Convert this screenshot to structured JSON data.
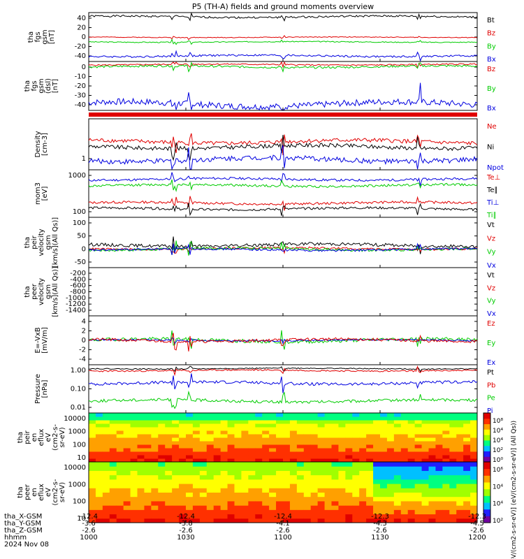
{
  "title": "P5 (TH-A) fields and ground moments overview",
  "colors": {
    "black": "#000000",
    "red": "#e00000",
    "green": "#00cc00",
    "blue": "#0000e0",
    "cbar": [
      "#7000a0",
      "#2020ff",
      "#00c0ff",
      "#00ff80",
      "#a0ff00",
      "#ffff00",
      "#ffa000",
      "#ff3000",
      "#e00000"
    ]
  },
  "panels": [
    {
      "id": "fgs-gsm",
      "ylabel": [
        "tha",
        "fgs",
        "gsm",
        "[nT]"
      ],
      "ticks": [
        "40",
        "20",
        "0",
        "-20",
        "-40"
      ],
      "ylim": [
        -50,
        55
      ],
      "legend": [
        {
          "text": "Bt",
          "color": "#000000"
        },
        {
          "text": "Bz",
          "color": "#e00000"
        },
        {
          "text": "By",
          "color": "#00cc00"
        },
        {
          "text": "Bx",
          "color": "#0000e0"
        }
      ],
      "series": [
        {
          "name": "Bt",
          "color": "#000000",
          "base": 46,
          "amp": 4,
          "seed": 1
        },
        {
          "name": "Bz",
          "color": "#e00000",
          "base": 2,
          "amp": 1.5,
          "seed": 2
        },
        {
          "name": "By",
          "color": "#00cc00",
          "base": -8,
          "amp": 2,
          "seed": 3
        },
        {
          "name": "Bx",
          "color": "#0000e0",
          "base": -38,
          "amp": 4,
          "seed": 4
        }
      ]
    },
    {
      "id": "fgs-gsm-dsl",
      "ylabel": [
        "tha",
        "fgs",
        "gsm",
        "(dsl)",
        "[nT]"
      ],
      "ticks": [
        "0",
        "-10",
        "-20",
        "-30",
        "-40"
      ],
      "ylim": [
        -45,
        2
      ],
      "legend": [
        {
          "text": "Bz",
          "color": "#e00000"
        },
        {
          "text": "By",
          "color": "#00cc00"
        },
        {
          "text": "Bx",
          "color": "#0000e0"
        }
      ],
      "series": [
        {
          "name": "Bz",
          "color": "#e00000",
          "base": -1,
          "amp": 1.2,
          "seed": 5
        },
        {
          "name": "By",
          "color": "#00cc00",
          "base": -3,
          "amp": 2,
          "seed": 6
        },
        {
          "name": "Bx",
          "color": "#0000e0",
          "base": -39,
          "amp": 6,
          "seed": 7
        }
      ]
    },
    {
      "id": "density",
      "ylabel": [
        "Density",
        "[cm-3]"
      ],
      "ticks": [
        "1"
      ],
      "ylim": [
        0,
        1
      ],
      "legend": [
        {
          "text": "Ne",
          "color": "#e00000"
        },
        {
          "text": "Ni",
          "color": "#000000"
        },
        {
          "text": "Npot",
          "color": "#0000e0"
        }
      ],
      "series": [
        {
          "name": "Ne",
          "color": "#e00000",
          "base": 0.55,
          "amp": 0.08,
          "seed": 8
        },
        {
          "name": "Ni",
          "color": "#000000",
          "base": 0.45,
          "amp": 0.08,
          "seed": 9
        },
        {
          "name": "Npot",
          "color": "#0000e0",
          "base": 0.2,
          "amp": 0.1,
          "seed": 10
        }
      ]
    },
    {
      "id": "temperature",
      "ylabel": [
        "mom3",
        "[eV]"
      ],
      "ticks": [
        "1000",
        "100"
      ],
      "ylim": [
        0,
        1
      ],
      "legend": [
        {
          "text": "Te⊥",
          "color": "#e00000"
        },
        {
          "text": "Te∥",
          "color": "#000000"
        },
        {
          "text": "Ti⊥",
          "color": "#0000e0"
        },
        {
          "text": "Ti∥",
          "color": "#00cc00"
        }
      ],
      "series": [
        {
          "name": "Ti⊥",
          "color": "#0000e0",
          "base": 0.8,
          "amp": 0.05,
          "seed": 11
        },
        {
          "name": "Ti∥",
          "color": "#00cc00",
          "base": 0.67,
          "amp": 0.05,
          "seed": 12
        },
        {
          "name": "Te⊥",
          "color": "#e00000",
          "base": 0.3,
          "amp": 0.05,
          "seed": 13
        },
        {
          "name": "Te∥",
          "color": "#000000",
          "base": 0.18,
          "amp": 0.05,
          "seed": 14
        }
      ]
    },
    {
      "id": "velocity-peir",
      "ylabel": [
        "tha",
        "peir",
        "velocity",
        "gsm",
        "[km/s](All Qs)]"
      ],
      "ticks": [
        "100",
        "50",
        "0",
        "-50"
      ],
      "ylim": [
        -70,
        120
      ],
      "legend": [
        {
          "text": "Vt",
          "color": "#000000"
        },
        {
          "text": "Vz",
          "color": "#e00000"
        },
        {
          "text": "Vy",
          "color": "#00cc00"
        },
        {
          "text": "Vx",
          "color": "#0000e0"
        }
      ],
      "series": [
        {
          "name": "Vt",
          "color": "#000000",
          "base": 15,
          "amp": 12,
          "seed": 15
        },
        {
          "name": "Vz",
          "color": "#e00000",
          "base": 2,
          "amp": 8,
          "seed": 16
        },
        {
          "name": "Vy",
          "color": "#00cc00",
          "base": 0,
          "amp": 10,
          "seed": 17
        },
        {
          "name": "Vx",
          "color": "#0000e0",
          "base": -2,
          "amp": 8,
          "seed": 18
        }
      ]
    },
    {
      "id": "velocity-peer",
      "ylabel": [
        "tha",
        "peer",
        "velocity",
        "gsm",
        "[km/s](All Qs)]"
      ],
      "ticks": [
        "-200",
        "-400",
        "-600",
        "-800",
        "-1000",
        "-1200",
        "-1400"
      ],
      "ylim": [
        -1500,
        0
      ],
      "legend": [
        {
          "text": "Vt",
          "color": "#000000"
        },
        {
          "text": "Vz",
          "color": "#e00000"
        },
        {
          "text": "Vy",
          "color": "#00cc00"
        },
        {
          "text": "Vx",
          "color": "#0000e0"
        }
      ],
      "series": []
    },
    {
      "id": "efield",
      "ylabel": [
        "E=-VxB",
        "[mV/m]"
      ],
      "ticks": [
        "4",
        "2",
        "0",
        "-2",
        "-4"
      ],
      "ylim": [
        -4.2,
        4.2
      ],
      "legend": [
        {
          "text": "Ez",
          "color": "#e00000"
        },
        {
          "text": "Ey",
          "color": "#00cc00"
        },
        {
          "text": "Ex",
          "color": "#0000e0"
        }
      ],
      "series": [
        {
          "name": "Ey",
          "color": "#00cc00",
          "base": 0,
          "amp": 0.6,
          "seed": 19
        },
        {
          "name": "Ex",
          "color": "#0000e0",
          "base": 0,
          "amp": 0.25,
          "seed": 20
        },
        {
          "name": "Ez",
          "color": "#e00000",
          "base": 0,
          "amp": 0.5,
          "seed": 21
        }
      ]
    },
    {
      "id": "pressure",
      "ylabel": [
        "Pressure",
        "[nPa]"
      ],
      "ticks": [
        "1.00",
        "0.10",
        "0.01"
      ],
      "ylim": [
        0,
        1
      ],
      "legend": [
        {
          "text": "Pt",
          "color": "#000000"
        },
        {
          "text": "Pb",
          "color": "#e00000"
        },
        {
          "text": "Pe",
          "color": "#00cc00"
        },
        {
          "text": "Pi",
          "color": "#0000e0"
        }
      ],
      "series": [
        {
          "name": "Pt",
          "color": "#000000",
          "base": 0.92,
          "amp": 0.02,
          "seed": 22
        },
        {
          "name": "Pb",
          "color": "#e00000",
          "base": 0.88,
          "amp": 0.03,
          "seed": 23
        },
        {
          "name": "Pi",
          "color": "#0000e0",
          "base": 0.62,
          "amp": 0.06,
          "seed": 24
        },
        {
          "name": "Pe",
          "color": "#00cc00",
          "base": 0.25,
          "amp": 0.06,
          "seed": 25
        }
      ]
    }
  ],
  "spectrograms": [
    {
      "id": "peir-eflux",
      "ylabel": [
        "tha",
        "peir",
        "en",
        "eflux",
        "eV",
        "(cm2-s-",
        "sr-eV)"
      ],
      "ticks": [
        "10000",
        "1000",
        "100",
        "10"
      ]
    },
    {
      "id": "peer-eflux",
      "ylabel": [
        "tha",
        "peer",
        "en",
        "eflux",
        "eV",
        "(cm2-s-",
        "sr-eV)"
      ],
      "ticks": [
        "10000",
        "1000",
        "100",
        "10"
      ]
    }
  ],
  "colorbars": [
    {
      "ticks": [
        "10⁸",
        "10⁴",
        "10⁴",
        "10²",
        "10⁰"
      ]
    },
    {
      "ticks": [
        "10⁶",
        "10⁴",
        "10⁴",
        "10²"
      ]
    }
  ],
  "colorbar_label": "[eV/(cm2-s-sr-eV)] (eV/(cm2-s-sr-eV)] (All Qs))",
  "xaxis": {
    "row_labels": [
      "tha_X-GSM",
      "tha_Y-GSM",
      "tha_Z-GSM",
      "hhmm",
      "2024 Nov 08"
    ],
    "columns": [
      {
        "x": "-12.4",
        "y": "-3.6",
        "z": "-2.6",
        "t": "1000"
      },
      {
        "x": "-12.4",
        "y": "-3.8",
        "z": "-2.6",
        "t": "1030"
      },
      {
        "x": "-12.4",
        "y": "-4.1",
        "z": "-2.6",
        "t": "1100"
      },
      {
        "x": "-12.3",
        "y": "-4.3",
        "z": "-2.6",
        "t": "1130"
      },
      {
        "x": "-12.3",
        "y": "-4.5",
        "z": "-2.6",
        "t": "1200"
      }
    ]
  }
}
